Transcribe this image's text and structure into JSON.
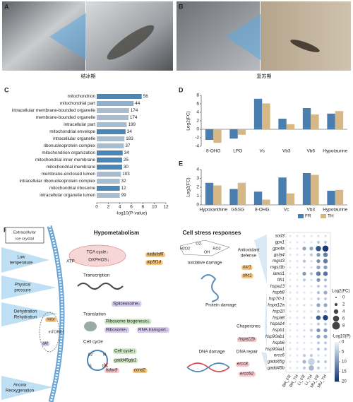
{
  "panel_labels": [
    "A",
    "B",
    "C",
    "D",
    "E",
    "F"
  ],
  "photo_captions": [
    "结冰期",
    "复苏期"
  ],
  "chart_data": [
    {
      "type": "barh",
      "categories": [
        "mitochondrion",
        "mitochondrial part",
        "intracellular membrane-bounded organelle",
        "membrane-bounded organelle",
        "intracellular part",
        "mitochondrial envelope",
        "intracellular organelle",
        "ribonucleoprotein complex",
        "mitochondrion organization",
        "mitochondrial inner membrane",
        "mitochondrial membrane",
        "membrane-enclosed lumen",
        "intracellular ribonucleoprotein complex",
        "mitochondrial ribosome",
        "intracellular organelle lumen"
      ],
      "values": [
        7.8,
        6.4,
        5.6,
        5.5,
        5.2,
        5.0,
        4.8,
        4.7,
        4.5,
        4.4,
        4.4,
        4.2,
        4.0,
        4.0,
        4.0
      ],
      "counts": [
        56,
        44,
        174,
        174,
        199,
        34,
        183,
        37,
        34,
        25,
        30,
        103,
        32,
        12,
        99
      ],
      "colors": [
        "#4a86b8",
        "#8fb0cc",
        "#a9bdd0",
        "#a9bdd0",
        "#a9bdd0",
        "#4a86b8",
        "#a9bdd0",
        "#a9bdd0",
        "#4a86b8",
        "#4a86b8",
        "#4a86b8",
        "#a9bdd0",
        "#a9bdd0",
        "#4a86b8",
        "#a9bdd0"
      ],
      "xlabel": "-log10(P-value)",
      "xlim": [
        0,
        12
      ],
      "xticks": [
        0,
        2,
        4,
        6,
        8,
        10,
        12
      ]
    },
    {
      "type": "bar",
      "ylabel": "Log2(FC)",
      "categories": [
        "8-OHG",
        "LPO",
        "Vc",
        "Vb3",
        "Vb6",
        "Hypotaurine"
      ],
      "series": [
        {
          "name": "FR",
          "color": "#4a7db0",
          "values": [
            -2.5,
            -2.2,
            7.2,
            2.5,
            5.0,
            3.7
          ]
        },
        {
          "name": "TH",
          "color": "#d6b886",
          "values": [
            -3.2,
            -1.3,
            6.1,
            1.2,
            3.5,
            4.3
          ]
        }
      ],
      "ylim": [
        -4,
        8
      ],
      "yticks": [
        -4,
        -2,
        0,
        2,
        4,
        6,
        8
      ]
    },
    {
      "type": "bar",
      "ylabel": "Log2(FC)",
      "categories": [
        "Hypoxanthine",
        "GSSG",
        "8-OHG",
        "Vc",
        "Vb3",
        "Hypotaurine"
      ],
      "series": [
        {
          "name": "FR",
          "color": "#4a7db0",
          "values": [
            2.5,
            1.8,
            1.5,
            3.1,
            3.6,
            1.6
          ]
        },
        {
          "name": "TH",
          "color": "#d6b886",
          "values": [
            2.2,
            2.5,
            0.6,
            1.3,
            3.4,
            1.7
          ]
        }
      ],
      "ylim": [
        0,
        4
      ],
      "yticks": [
        0,
        1,
        2,
        3,
        4
      ],
      "legend": "bottom"
    },
    {
      "type": "dotplot",
      "rows": [
        "sod3",
        "gpx1",
        "gpx4a",
        "gsta4",
        "mgst3",
        "mgst3b",
        "lancl1",
        "fth1",
        "hspa13",
        "hspb8",
        "hsp70-1",
        "hspa12a",
        "hsp10",
        "hspa8",
        "hspa14",
        "hspb1",
        "hsp90ab1",
        "hspb6",
        "hsp90aa1",
        "ercc6",
        "gadd45g",
        "gadd45b"
      ],
      "columns": [
        "BR_FR",
        "BR_TH",
        "LI_FR",
        "LI_TH",
        "MU_FR",
        "MU_TH"
      ],
      "fc": [
        [
          1,
          1,
          1,
          1,
          1,
          1
        ],
        [
          1,
          1,
          1,
          1,
          2,
          2
        ],
        [
          1,
          1,
          3,
          3,
          5,
          6
        ],
        [
          1,
          1,
          1,
          2,
          3,
          4
        ],
        [
          1,
          1,
          2,
          1,
          3,
          4
        ],
        [
          1,
          1,
          1,
          1,
          3,
          3
        ],
        [
          1,
          1,
          3,
          2,
          4,
          4
        ],
        [
          1,
          1,
          2,
          1,
          3,
          2
        ],
        [
          1,
          1,
          1,
          1,
          2,
          2
        ],
        [
          1,
          1,
          1,
          1,
          2,
          3
        ],
        [
          1,
          1,
          1,
          1,
          2,
          2
        ],
        [
          1,
          1,
          1,
          1,
          3,
          3
        ],
        [
          1,
          1,
          1,
          1,
          2,
          2
        ],
        [
          1,
          1,
          1,
          1,
          4,
          5
        ],
        [
          1,
          1,
          1,
          1,
          2,
          2
        ],
        [
          1,
          1,
          1,
          2,
          3,
          3
        ],
        [
          1,
          1,
          1,
          1,
          3,
          3
        ],
        [
          1,
          1,
          1,
          1,
          2,
          2
        ],
        [
          1,
          1,
          1,
          1,
          2,
          2
        ],
        [
          1,
          1,
          2,
          2,
          1,
          1
        ],
        [
          1,
          1,
          3,
          7,
          2,
          2
        ],
        [
          1,
          1,
          2,
          5,
          2,
          1
        ]
      ],
      "p": [
        [
          1,
          1,
          1,
          1,
          2,
          2
        ],
        [
          1,
          1,
          1,
          1,
          4,
          4
        ],
        [
          1,
          1,
          8,
          8,
          16,
          19
        ],
        [
          1,
          1,
          2,
          4,
          9,
          12
        ],
        [
          1,
          1,
          5,
          2,
          10,
          12
        ],
        [
          1,
          1,
          2,
          2,
          8,
          9
        ],
        [
          1,
          1,
          9,
          5,
          12,
          13
        ],
        [
          1,
          1,
          4,
          2,
          9,
          6
        ],
        [
          1,
          1,
          1,
          1,
          4,
          4
        ],
        [
          1,
          1,
          1,
          1,
          5,
          7
        ],
        [
          1,
          1,
          1,
          1,
          4,
          4
        ],
        [
          1,
          1,
          2,
          2,
          8,
          8
        ],
        [
          1,
          1,
          1,
          1,
          4,
          4
        ],
        [
          1,
          1,
          2,
          2,
          15,
          18
        ],
        [
          1,
          1,
          1,
          1,
          4,
          4
        ],
        [
          1,
          1,
          2,
          4,
          10,
          9
        ],
        [
          1,
          1,
          2,
          2,
          8,
          8
        ],
        [
          1,
          1,
          1,
          1,
          4,
          4
        ],
        [
          1,
          1,
          1,
          1,
          5,
          4
        ],
        [
          1,
          1,
          4,
          4,
          2,
          2
        ],
        [
          1,
          1,
          6,
          3,
          4,
          4
        ],
        [
          1,
          1,
          4,
          6,
          4,
          2
        ]
      ],
      "size_label": "Log2(FC)",
      "size_ticks": [
        0,
        2,
        4,
        6,
        8
      ],
      "color_label": "-Log10(P)",
      "color_ticks": [
        0,
        5,
        10,
        15,
        20
      ],
      "clim": [
        0,
        20
      ],
      "colors": [
        "#e8f1fa",
        "#08306b"
      ]
    }
  ],
  "diagram": {
    "texts": [
      "Extracellular",
      "ice crystal",
      "Low",
      "temperature",
      "Physical",
      "pressure",
      "Dehydration",
      "Rehydration",
      "Anoxia",
      "Reoxygenation",
      "mtor",
      "akt",
      "mTORC1",
      "Hypometabolism",
      "ATP",
      "TCA cycle↓",
      "OXPHOS↓",
      "nadufaf6",
      "atp5f1d",
      "Transcription",
      "Spliceosome↓",
      "Translation",
      "Ribosome biogenesis↓",
      "Ribosome↓",
      "RNA transport↓",
      "Cell cycle",
      "Cell cycle↓",
      "gadd45gip1",
      "hdac9",
      "ccnd2",
      "G2",
      "M",
      "G1",
      "S",
      "Cell stress responses",
      "H2O2",
      "O2-",
      "OH",
      "RO2",
      "oxidative damage",
      "Antioxidant",
      "defense",
      "oxr1",
      "shc1",
      "Protein damage",
      "Chaperones",
      "hspa12b",
      "DNA damage",
      "DNA repair",
      "ercc8",
      "ercc6l2"
    ]
  }
}
